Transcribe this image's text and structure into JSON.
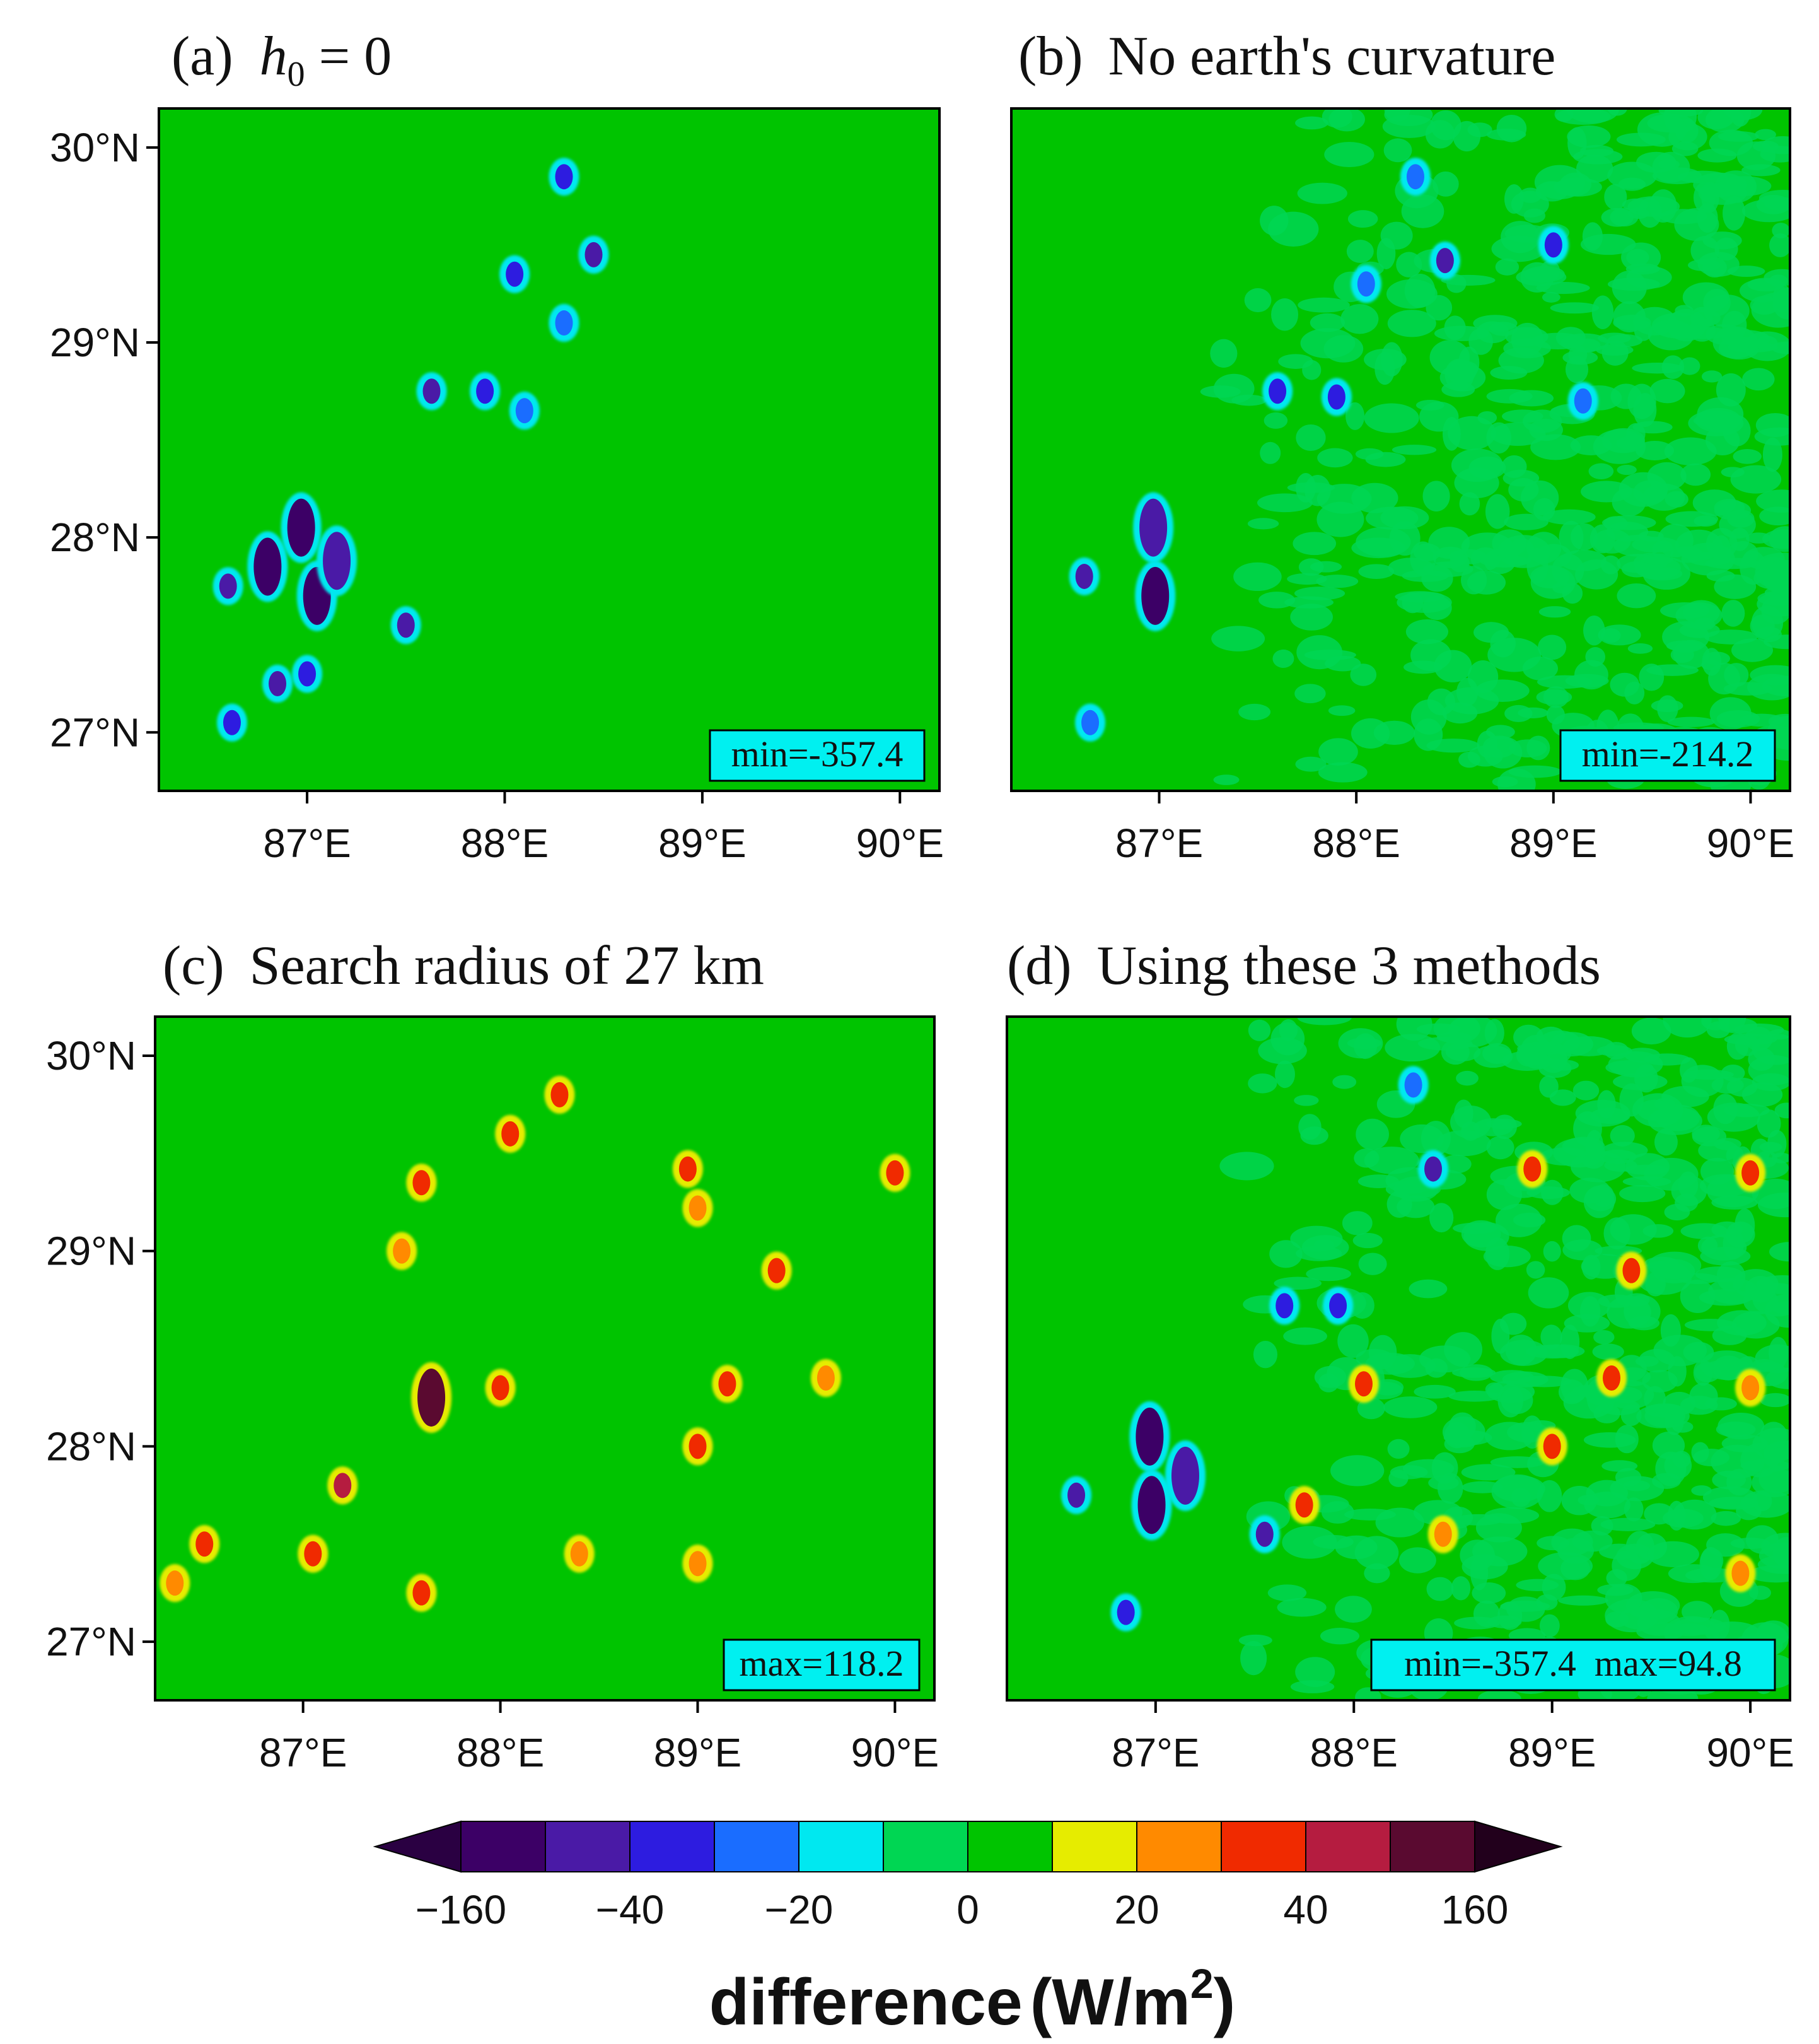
{
  "chart_data": [
    {
      "type": "heatmap",
      "panel_label": "(a)",
      "title_symbol": "h",
      "title_subscript": "0",
      "title_rest": " = 0",
      "xlabel": "",
      "ylabel": "",
      "x_ticks": [
        "87°E",
        "88°E",
        "89°E",
        "90°E"
      ],
      "y_ticks": [
        "30°N",
        "29°N",
        "28°N",
        "27°N"
      ],
      "x_tick_values": [
        87,
        88,
        89,
        90
      ],
      "y_tick_values": [
        30,
        29,
        28,
        27
      ],
      "xlim": [
        86.25,
        90.2
      ],
      "ylim": [
        26.7,
        30.2
      ],
      "annotation": "min=-357.4",
      "features": [
        {
          "lon": 86.8,
          "lat": 27.85,
          "value": -200
        },
        {
          "lon": 86.85,
          "lat": 27.25,
          "value": -60
        },
        {
          "lon": 87.05,
          "lat": 27.7,
          "value": -200
        },
        {
          "lon": 86.97,
          "lat": 28.05,
          "value": -160
        },
        {
          "lon": 87.15,
          "lat": 27.88,
          "value": -100
        },
        {
          "lon": 86.6,
          "lat": 27.75,
          "value": -80
        },
        {
          "lon": 86.62,
          "lat": 27.05,
          "value": -40
        },
        {
          "lon": 87.0,
          "lat": 27.3,
          "value": -40
        },
        {
          "lon": 87.5,
          "lat": 27.55,
          "value": -60
        },
        {
          "lon": 87.63,
          "lat": 28.75,
          "value": -60
        },
        {
          "lon": 87.9,
          "lat": 28.75,
          "value": -40
        },
        {
          "lon": 88.05,
          "lat": 29.35,
          "value": -40
        },
        {
          "lon": 88.3,
          "lat": 29.85,
          "value": -40
        },
        {
          "lon": 88.45,
          "lat": 29.45,
          "value": -80
        },
        {
          "lon": 88.3,
          "lat": 29.1,
          "value": -30
        },
        {
          "lon": 88.1,
          "lat": 28.65,
          "value": -20
        }
      ]
    },
    {
      "type": "heatmap",
      "panel_label": "(b)",
      "title": "No earth's curvature",
      "xlabel": "",
      "ylabel": "",
      "x_ticks": [
        "87°E",
        "88°E",
        "89°E",
        "90°E"
      ],
      "x_tick_values": [
        87,
        88,
        89,
        90
      ],
      "xlim": [
        86.25,
        90.2
      ],
      "ylim": [
        26.7,
        30.2
      ],
      "annotation": "min=-214.2",
      "features": [
        {
          "lon": 86.98,
          "lat": 27.7,
          "value": -160
        },
        {
          "lon": 86.97,
          "lat": 28.05,
          "value": -100
        },
        {
          "lon": 86.62,
          "lat": 27.8,
          "value": -60
        },
        {
          "lon": 86.65,
          "lat": 27.05,
          "value": -30
        },
        {
          "lon": 87.6,
          "lat": 28.75,
          "value": -40
        },
        {
          "lon": 87.9,
          "lat": 28.72,
          "value": -40
        },
        {
          "lon": 88.05,
          "lat": 29.3,
          "value": -30
        },
        {
          "lon": 88.3,
          "lat": 29.85,
          "value": -30
        },
        {
          "lon": 88.45,
          "lat": 29.42,
          "value": -60
        },
        {
          "lon": 89.0,
          "lat": 29.5,
          "value": -40
        },
        {
          "lon": 89.15,
          "lat": 28.7,
          "value": -30
        }
      ]
    },
    {
      "type": "heatmap",
      "panel_label": "(c)",
      "title": "Search radius of 27 km",
      "xlabel": "",
      "ylabel": "",
      "x_ticks": [
        "87°E",
        "88°E",
        "89°E",
        "90°E"
      ],
      "y_ticks": [
        "30°N",
        "29°N",
        "28°N",
        "27°N"
      ],
      "x_tick_values": [
        87,
        88,
        89,
        90
      ],
      "y_tick_values": [
        30,
        29,
        28,
        27
      ],
      "xlim": [
        86.25,
        90.2
      ],
      "ylim": [
        26.7,
        30.2
      ],
      "annotation": "max=118.2",
      "features": [
        {
          "lon": 87.2,
          "lat": 27.8,
          "value": 80
        },
        {
          "lon": 87.05,
          "lat": 27.45,
          "value": 60
        },
        {
          "lon": 87.65,
          "lat": 28.25,
          "value": 100
        },
        {
          "lon": 88.0,
          "lat": 28.3,
          "value": 60
        },
        {
          "lon": 88.05,
          "lat": 29.6,
          "value": 60
        },
        {
          "lon": 88.3,
          "lat": 29.8,
          "value": 40
        },
        {
          "lon": 88.95,
          "lat": 29.42,
          "value": 60
        },
        {
          "lon": 89.0,
          "lat": 28.0,
          "value": 40
        },
        {
          "lon": 89.15,
          "lat": 28.32,
          "value": 40
        },
        {
          "lon": 89.65,
          "lat": 28.35,
          "value": 30
        },
        {
          "lon": 89.4,
          "lat": 28.9,
          "value": 40
        },
        {
          "lon": 90.0,
          "lat": 29.4,
          "value": 60
        },
        {
          "lon": 86.5,
          "lat": 27.5,
          "value": 40
        },
        {
          "lon": 86.35,
          "lat": 27.3,
          "value": 20
        },
        {
          "lon": 87.6,
          "lat": 27.25,
          "value": 40
        },
        {
          "lon": 88.4,
          "lat": 27.45,
          "value": 30
        },
        {
          "lon": 89.0,
          "lat": 27.4,
          "value": 20
        },
        {
          "lon": 89.0,
          "lat": 29.22,
          "value": 30
        },
        {
          "lon": 87.6,
          "lat": 29.35,
          "value": 40
        },
        {
          "lon": 87.5,
          "lat": 29.0,
          "value": 30
        }
      ]
    },
    {
      "type": "heatmap",
      "panel_label": "(d)",
      "title": "Using these 3 methods",
      "xlabel": "",
      "ylabel": "",
      "x_ticks": [
        "87°E",
        "88°E",
        "89°E",
        "90°E"
      ],
      "x_tick_values": [
        87,
        88,
        89,
        90
      ],
      "xlim": [
        86.25,
        90.2
      ],
      "ylim": [
        26.7,
        30.2
      ],
      "annotation": "min=-357.4  max=94.8",
      "features": [
        {
          "lon": 86.98,
          "lat": 27.7,
          "value": -200
        },
        {
          "lon": 86.97,
          "lat": 28.05,
          "value": -160
        },
        {
          "lon": 87.15,
          "lat": 27.85,
          "value": -100
        },
        {
          "lon": 86.6,
          "lat": 27.75,
          "value": -80
        },
        {
          "lon": 86.85,
          "lat": 27.15,
          "value": -40
        },
        {
          "lon": 87.55,
          "lat": 27.55,
          "value": -60
        },
        {
          "lon": 87.65,
          "lat": 28.72,
          "value": -40
        },
        {
          "lon": 87.92,
          "lat": 28.72,
          "value": -40
        },
        {
          "lon": 88.4,
          "lat": 29.42,
          "value": -60
        },
        {
          "lon": 88.3,
          "lat": 29.85,
          "value": -30
        },
        {
          "lon": 88.05,
          "lat": 28.32,
          "value": 60
        },
        {
          "lon": 88.9,
          "lat": 29.42,
          "value": 60
        },
        {
          "lon": 89.3,
          "lat": 28.35,
          "value": 40
        },
        {
          "lon": 89.0,
          "lat": 28.0,
          "value": 40
        },
        {
          "lon": 89.4,
          "lat": 28.9,
          "value": 40
        },
        {
          "lon": 90.0,
          "lat": 29.4,
          "value": 60
        },
        {
          "lon": 87.75,
          "lat": 27.7,
          "value": 40
        },
        {
          "lon": 88.45,
          "lat": 27.55,
          "value": 30
        },
        {
          "lon": 89.95,
          "lat": 27.35,
          "value": 30
        },
        {
          "lon": 90.0,
          "lat": 28.3,
          "value": 30
        }
      ]
    }
  ],
  "colorbar": {
    "tick_labels": [
      "−160",
      "−40",
      "−20",
      "0",
      "20",
      "40",
      "160"
    ],
    "colors": [
      "#2a0042",
      "#3c0066",
      "#4a1aa6",
      "#2d1ce0",
      "#1a6dff",
      "#00e8f0",
      "#00d653",
      "#00c400",
      "#e6ec00",
      "#ff8a00",
      "#f02a00",
      "#b51c40",
      "#5a0a30",
      "#22001c"
    ],
    "label_main": "difference",
    "label_unit_open": "(W/m",
    "label_unit_sup": "2",
    "label_unit_close": ")"
  }
}
